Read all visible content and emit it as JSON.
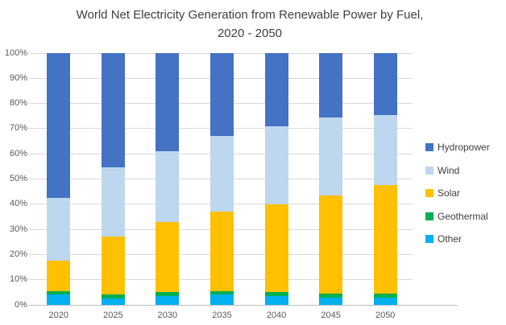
{
  "title": {
    "line1": "World Net Electricity Generation from Renewable Power by Fuel,",
    "line2": "2020 - 2050"
  },
  "chart_data": {
    "type": "bar",
    "subtype": "stacked-100-percent",
    "title": "World Net Electricity Generation from Renewable Power by Fuel, 2020 - 2050",
    "xlabel": "",
    "ylabel": "",
    "units": "percent share",
    "categories": [
      "2020",
      "2025",
      "2030",
      "2035",
      "2040",
      "2045",
      "2050"
    ],
    "series": [
      {
        "name": "Hydropower",
        "color": "#4472C4",
        "values": [
          57.5,
          45.5,
          39,
          33,
          29,
          25.5,
          24.5
        ]
      },
      {
        "name": "Wind",
        "color": "#BDD7EE",
        "values": [
          25,
          27.5,
          28,
          30,
          31,
          31,
          28
        ]
      },
      {
        "name": "Solar",
        "color": "#FFC000",
        "values": [
          12,
          23,
          28,
          31.5,
          35,
          39,
          43
        ]
      },
      {
        "name": "Geothermal",
        "color": "#00B050",
        "values": [
          1.5,
          1.5,
          1.5,
          1.5,
          1.5,
          1.5,
          1.5
        ]
      },
      {
        "name": "Other",
        "color": "#00B0F0",
        "values": [
          4,
          2.5,
          3.5,
          4,
          3.5,
          3,
          3
        ]
      }
    ],
    "stack_order_bottom_to_top": [
      "Other",
      "Geothermal",
      "Solar",
      "Wind",
      "Hydropower"
    ],
    "y_ticks": [
      "0%",
      "10%",
      "20%",
      "30%",
      "40%",
      "50%",
      "60%",
      "70%",
      "80%",
      "90%",
      "100%"
    ],
    "ylim": [
      0,
      100
    ],
    "grid": true,
    "legend_position": "right",
    "colors": {
      "gridline": "#D9D9D9",
      "axis_line": "#BFBFBF",
      "title_text": "#404040",
      "tick_text": "#595959",
      "background": "#FFFFFF"
    }
  }
}
